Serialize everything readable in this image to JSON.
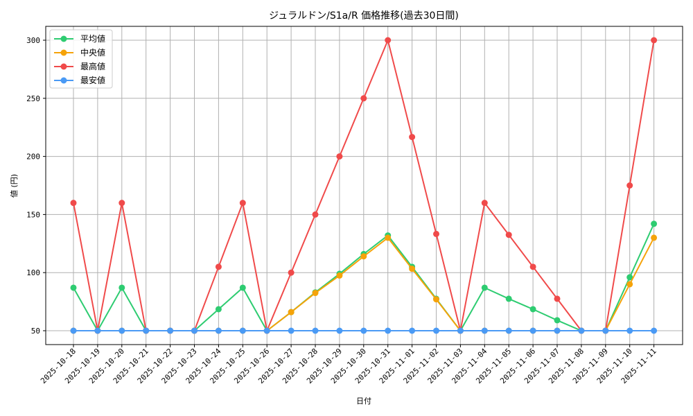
{
  "chart_data": {
    "type": "line",
    "title": "ジュラルドン/S1a/R 価格推移(過去30日間)",
    "xlabel": "日付",
    "ylabel": "値 (円)",
    "ylim": [
      38,
      313
    ],
    "yticks": [
      50,
      100,
      150,
      200,
      250,
      300
    ],
    "grid": true,
    "legend_position": "upper left",
    "categories": [
      "2025-10-18",
      "2025-10-19",
      "2025-10-20",
      "2025-10-21",
      "2025-10-22",
      "2025-10-23",
      "2025-10-24",
      "2025-10-25",
      "2025-10-26",
      "2025-10-27",
      "2025-10-28",
      "2025-10-29",
      "2025-10-30",
      "2025-10-31",
      "2025-11-01",
      "2025-11-02",
      "2025-11-03",
      "2025-11-04",
      "2025-11-05",
      "2025-11-06",
      "2025-11-07",
      "2025-11-08",
      "2025-11-09",
      "2025-11-10",
      "2025-11-11"
    ],
    "series": [
      {
        "name": "平均値",
        "color": "#2ecc71",
        "values": [
          87,
          50,
          87,
          50,
          50,
          50,
          68.5,
          87,
          50,
          66,
          83,
          99,
          116,
          132,
          105,
          77.5,
          50,
          87,
          77.5,
          68.5,
          59,
          50,
          50,
          96,
          142
        ]
      },
      {
        "name": "中央値",
        "color": "#f5a30a",
        "values": [
          50,
          50,
          50,
          50,
          50,
          50,
          50,
          50,
          50,
          66,
          82.5,
          97.5,
          114,
          130,
          103.3,
          77,
          50,
          50,
          50,
          50,
          50,
          50,
          50,
          90,
          130
        ]
      },
      {
        "name": "最高値",
        "color": "#f04a4a",
        "values": [
          160,
          50,
          160,
          50,
          50,
          50,
          105,
          160,
          50,
          100,
          150,
          200,
          250,
          300,
          216.7,
          133.3,
          50,
          160,
          132.5,
          105,
          77.5,
          50,
          50,
          175,
          300
        ]
      },
      {
        "name": "最安値",
        "color": "#4a9af5",
        "values": [
          50,
          50,
          50,
          50,
          50,
          50,
          50,
          50,
          50,
          50,
          50,
          50,
          50,
          50,
          50,
          50,
          50,
          50,
          50,
          50,
          50,
          50,
          50,
          50,
          50
        ]
      }
    ]
  }
}
